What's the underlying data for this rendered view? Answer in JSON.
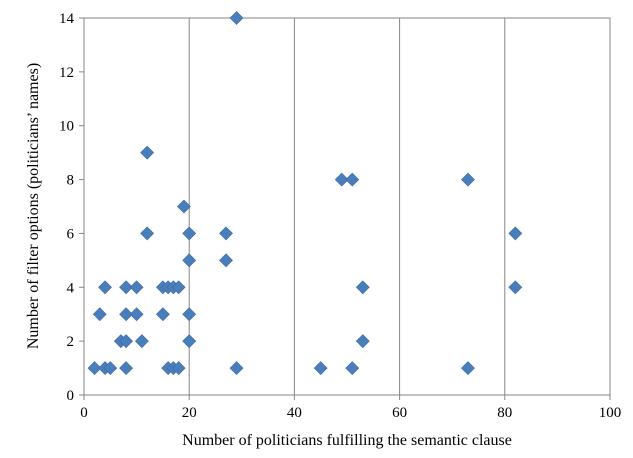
{
  "chart_data": {
    "type": "scatter",
    "title": "",
    "xlabel": "Number of politicians fulfilling the semantic clause",
    "ylabel": "Number of filter options (politicians’ names)",
    "xlim": [
      0,
      100
    ],
    "ylim": [
      0,
      14
    ],
    "x_ticks": [
      "0",
      "20",
      "40",
      "60",
      "80",
      "100"
    ],
    "y_ticks": [
      "0",
      "2",
      "4",
      "6",
      "8",
      "10",
      "12",
      "14"
    ],
    "grid": "vertical major gridlines",
    "legend": "none",
    "marker": "diamond",
    "marker_color": "#4a7ebb",
    "series": [
      {
        "points": [
          [
            2,
            1
          ],
          [
            3,
            3
          ],
          [
            4,
            4
          ],
          [
            4,
            1
          ],
          [
            5,
            1
          ],
          [
            7,
            2
          ],
          [
            8,
            4
          ],
          [
            8,
            3
          ],
          [
            8,
            2
          ],
          [
            8,
            1
          ],
          [
            10,
            4
          ],
          [
            10,
            3
          ],
          [
            11,
            2
          ],
          [
            12,
            9
          ],
          [
            12,
            6
          ],
          [
            15,
            4
          ],
          [
            15,
            3
          ],
          [
            16,
            4
          ],
          [
            16,
            1
          ],
          [
            17,
            4
          ],
          [
            17,
            1
          ],
          [
            18,
            4
          ],
          [
            18,
            1
          ],
          [
            19,
            7
          ],
          [
            20,
            6
          ],
          [
            20,
            5
          ],
          [
            20,
            3
          ],
          [
            20,
            2
          ],
          [
            27,
            6
          ],
          [
            27,
            5
          ],
          [
            29,
            14
          ],
          [
            29,
            1
          ],
          [
            45,
            1
          ],
          [
            49,
            8
          ],
          [
            51,
            8
          ],
          [
            51,
            1
          ],
          [
            53,
            4
          ],
          [
            53,
            2
          ],
          [
            73,
            8
          ],
          [
            73,
            1
          ],
          [
            82,
            6
          ],
          [
            82,
            4
          ]
        ]
      }
    ]
  }
}
